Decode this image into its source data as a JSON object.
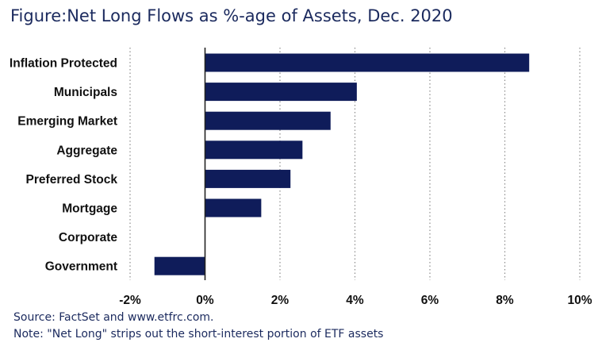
{
  "title": {
    "lead": "Figure:",
    "text": "Net Long Flows as %-age of Assets, Dec. 2020"
  },
  "footer": {
    "source": "Source: FactSet and www.etfrc.com.",
    "note": "Note: \"Net Long\" strips out the short-interest portion of ETF assets"
  },
  "colors": {
    "bar": "#0f1c5a",
    "grid": "#8c8c8c",
    "axis": "#222222",
    "title": "#1b2a5e"
  },
  "chart_data": {
    "type": "bar",
    "orientation": "horizontal",
    "categories": [
      "Inflation Protected",
      "Municipals",
      "Emerging Market",
      "Aggregate",
      "Preferred Stock",
      "Mortgage",
      "Corporate",
      "Government"
    ],
    "values": [
      8.65,
      4.05,
      3.35,
      2.6,
      2.28,
      1.5,
      0.0,
      -1.35
    ],
    "xlim": [
      -2,
      10
    ],
    "xticks": [
      -2,
      0,
      2,
      4,
      6,
      8,
      10
    ],
    "xtick_labels": [
      "-2%",
      "0%",
      "2%",
      "4%",
      "6%",
      "8%",
      "10%"
    ],
    "grid": "vertical-dotted",
    "legend": "none"
  }
}
